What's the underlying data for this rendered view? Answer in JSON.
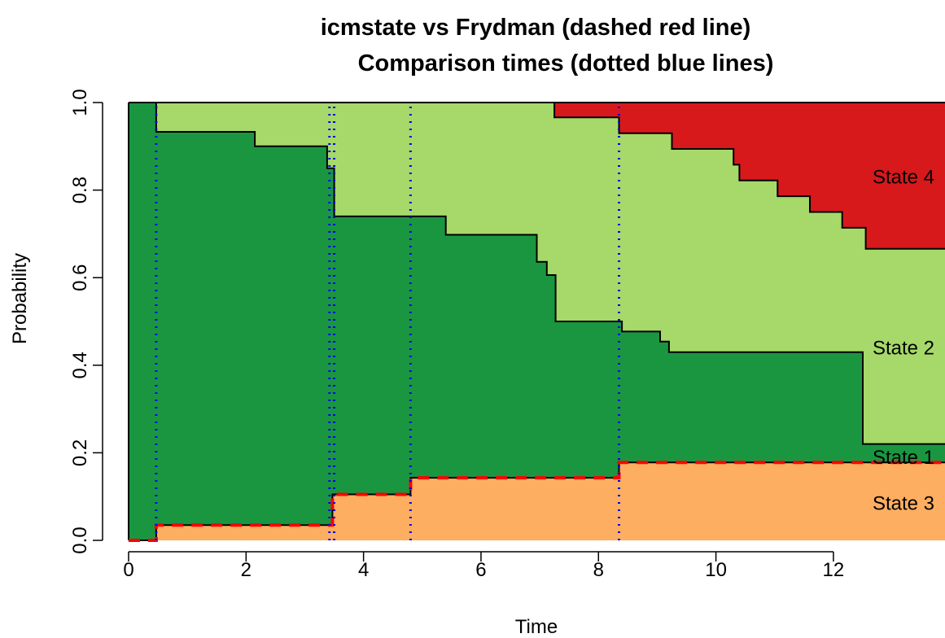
{
  "chart_data": {
    "type": "area",
    "title": "icmstate vs Frydman (dashed red line)",
    "subtitle": "Comparison times (dotted blue lines)",
    "xlabel": "Time",
    "ylabel": "Probability",
    "xlim": [
      0,
      13.9
    ],
    "ylim": [
      0,
      1
    ],
    "x_ticks": [
      0,
      2,
      4,
      6,
      8,
      10,
      12
    ],
    "y_ticks": [
      0.0,
      0.2,
      0.4,
      0.6,
      0.8,
      1.0
    ],
    "x_tick_labels": [
      "0",
      "2",
      "4",
      "6",
      "8",
      "10",
      "12"
    ],
    "y_tick_labels": [
      "0.0",
      "0.2",
      "0.4",
      "0.6",
      "0.8",
      "1.0"
    ],
    "colors": {
      "state1": "#1a9641",
      "state2": "#a6d96a",
      "state3": "#fdae61",
      "state4": "#d7191c",
      "frydman": "#ff0000",
      "comparison": "#0000ff"
    },
    "state_labels": [
      {
        "text": "State 4",
        "y": 0.83
      },
      {
        "text": "State 2",
        "y": 0.44
      },
      {
        "text": "State 1",
        "y": 0.19
      },
      {
        "text": "State 3",
        "y": 0.085
      }
    ],
    "boundaries": {
      "state3_upper": [
        [
          0,
          0.0
        ],
        [
          0.47,
          0.035
        ],
        [
          3.47,
          0.105
        ],
        [
          4.8,
          0.143
        ],
        [
          8.35,
          0.178
        ],
        [
          13.9,
          0.178
        ]
      ],
      "state1_upper": [
        [
          0,
          1.0
        ],
        [
          0.47,
          0.933
        ],
        [
          2.15,
          0.9
        ],
        [
          3.38,
          0.85
        ],
        [
          3.5,
          0.74
        ],
        [
          5.4,
          0.698
        ],
        [
          6.95,
          0.636
        ],
        [
          7.12,
          0.606
        ],
        [
          7.27,
          0.5
        ],
        [
          8.4,
          0.477
        ],
        [
          9.05,
          0.454
        ],
        [
          9.2,
          0.43
        ],
        [
          12.5,
          0.22
        ],
        [
          13.9,
          0.22
        ]
      ],
      "state2_upper": [
        [
          0,
          1.0
        ],
        [
          7.25,
          0.966
        ],
        [
          8.35,
          0.93
        ],
        [
          9.25,
          0.894
        ],
        [
          10.3,
          0.858
        ],
        [
          10.4,
          0.822
        ],
        [
          11.05,
          0.786
        ],
        [
          11.6,
          0.75
        ],
        [
          12.15,
          0.714
        ],
        [
          12.55,
          0.666
        ],
        [
          13.9,
          0.666
        ]
      ]
    },
    "frydman_line": [
      [
        0,
        0.0
      ],
      [
        0.47,
        0.035
      ],
      [
        3.47,
        0.105
      ],
      [
        4.8,
        0.143
      ],
      [
        8.35,
        0.178
      ],
      [
        13.9,
        0.178
      ]
    ],
    "comparison_times": [
      0.47,
      3.42,
      3.5,
      4.8,
      8.35
    ]
  }
}
